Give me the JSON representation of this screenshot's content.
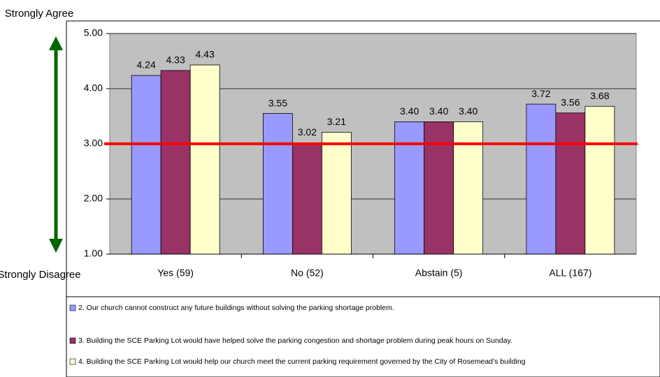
{
  "chart_data": {
    "type": "bar",
    "categories": [
      "Yes (59)",
      "No (52)",
      "Abstain (5)",
      "ALL (167)"
    ],
    "series": [
      {
        "name": "2. Our church cannot construct any future buildings without solving the parking shortage problem.",
        "color": "#9999ff",
        "values": [
          4.24,
          3.55,
          3.4,
          3.72
        ],
        "value_labels": [
          "4.24",
          "3.55",
          "3.40",
          "3.72"
        ]
      },
      {
        "name": "3. Building the SCE Parking Lot would have helped solve the parking congestion and shortage problem during peak hours on Sunday.",
        "color": "#993366",
        "values": [
          4.33,
          3.02,
          3.4,
          3.56
        ],
        "value_labels": [
          "4.33",
          "3.02",
          "3.40",
          "3.56"
        ]
      },
      {
        "name": "4. Building the SCE Parking Lot would help our church meet the current parking requirement governed by the City of Rosemead’s building",
        "color": "#ffffcc",
        "values": [
          4.43,
          3.21,
          3.4,
          3.68
        ],
        "value_labels": [
          "4.43",
          "3.21",
          "3.40",
          "3.68"
        ]
      }
    ],
    "ylim": [
      1,
      5
    ],
    "yticks": [
      {
        "value": 1,
        "label": "1.00"
      },
      {
        "value": 2,
        "label": "2.00"
      },
      {
        "value": 3,
        "label": "3.00"
      },
      {
        "value": 4,
        "label": "4.00"
      },
      {
        "value": 5,
        "label": "5.00"
      }
    ],
    "grid": true,
    "plot_background": "#c0c0c0",
    "reference_line": {
      "value": 3,
      "color": "#ff0000"
    },
    "annotations": [
      "Strongly Agree",
      "Strongly Disagree"
    ],
    "legend": "bottom"
  }
}
